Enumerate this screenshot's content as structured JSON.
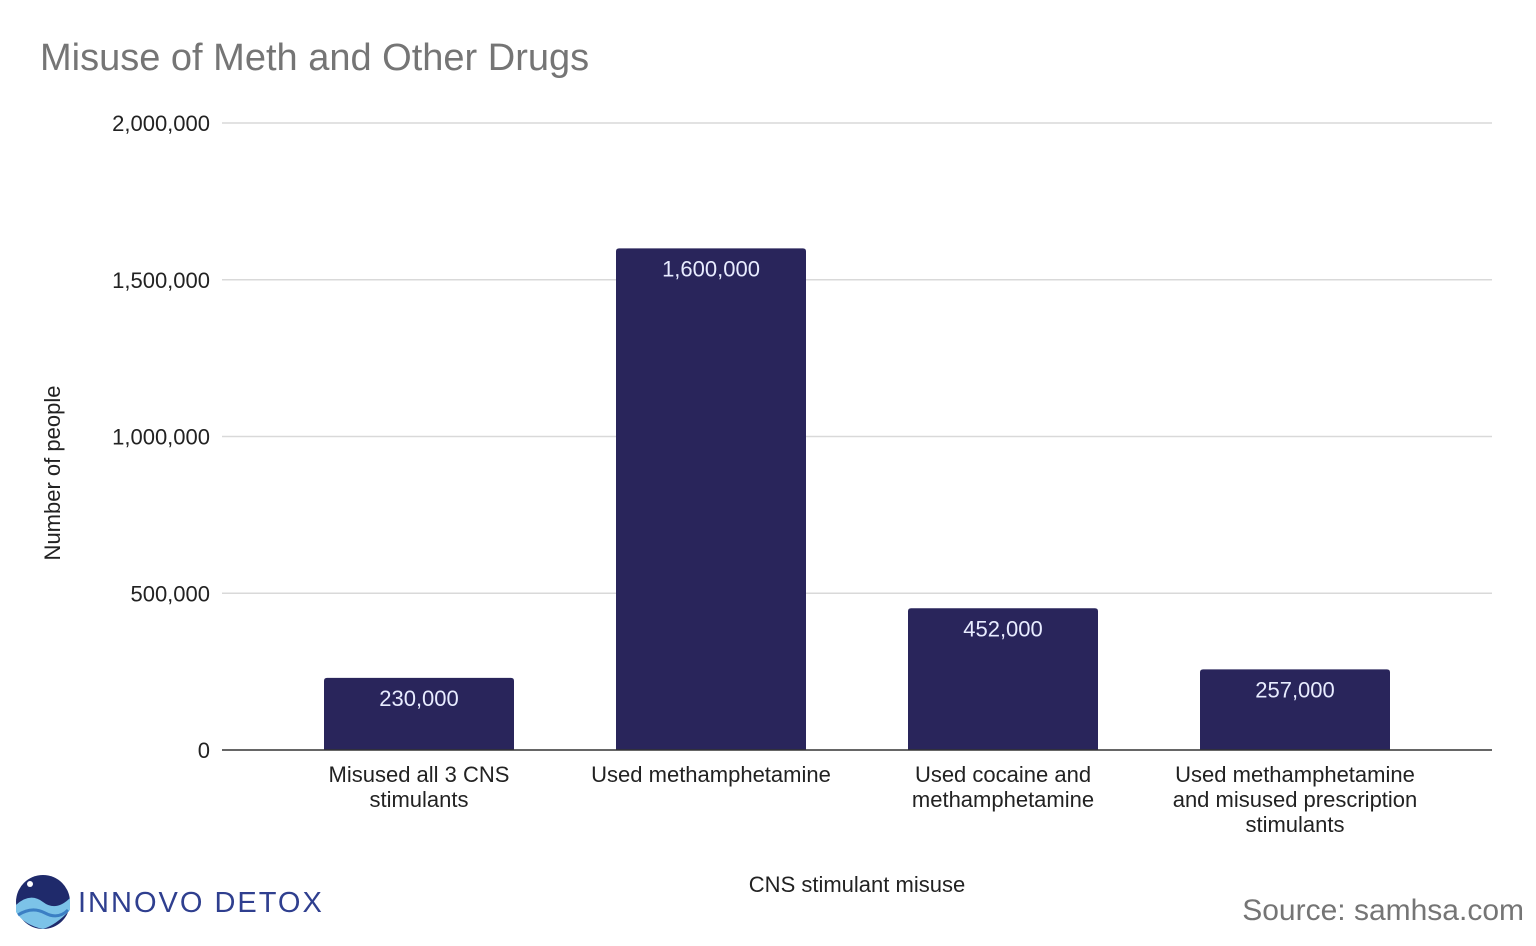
{
  "chart_data": {
    "type": "bar",
    "title": "Misuse of Meth and Other Drugs",
    "xlabel": "CNS stimulant misuse",
    "ylabel": "Number of people",
    "categories": [
      [
        "Misused all 3 CNS",
        "stimulants"
      ],
      [
        "Used methamphetamine"
      ],
      [
        "Used cocaine and",
        "methamphetamine"
      ],
      [
        "Used methamphetamine",
        "and misused prescription",
        "stimulants"
      ]
    ],
    "values": [
      230000,
      1600000,
      452000,
      257000
    ],
    "data_labels": [
      "230,000",
      "1,600,000",
      "452,000",
      "257,000"
    ],
    "ylim": [
      0,
      2000000
    ],
    "yticks": [
      0,
      500000,
      1000000,
      1500000,
      2000000
    ],
    "ytick_labels": [
      "0",
      "500,000",
      "1,000,000",
      "1,500,000",
      "2,000,000"
    ],
    "grid": true,
    "legend": "none",
    "bar_color": "#29255b",
    "gridline_color": "#d9d9d9"
  },
  "logo": {
    "text": "INNOVO DETOX",
    "color": "#2f3f8f"
  },
  "source": "Source: samhsa.com"
}
